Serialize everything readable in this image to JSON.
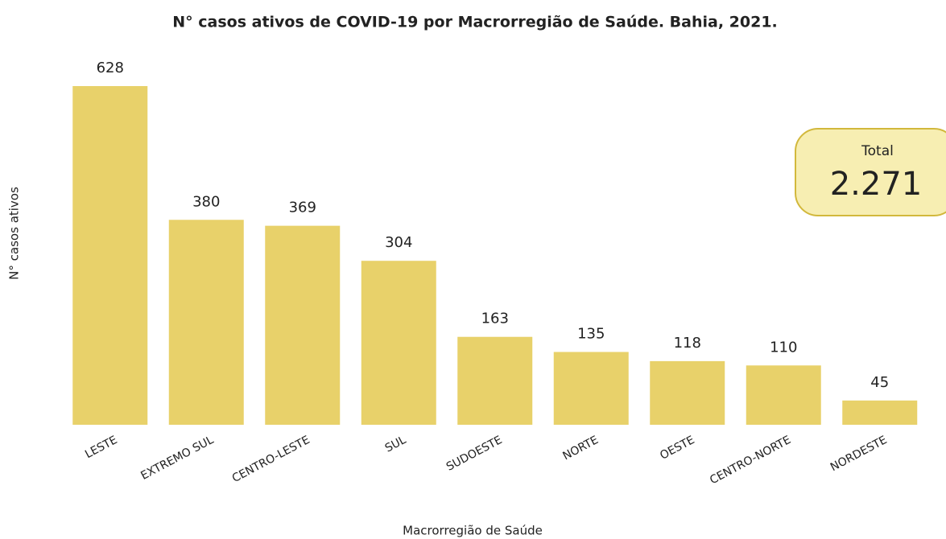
{
  "chart_data": {
    "type": "bar",
    "title": "N° casos ativos  de COVID-19 por Macrorregião de Saúde. Bahia, 2021.",
    "x_label": "Macrorregião de Saúde",
    "y_label": "N° casos ativos",
    "categories": [
      "LESTE",
      "EXTREMO SUL",
      "CENTRO-LESTE",
      "SUL",
      "SUDOESTE",
      "NORTE",
      "OESTE",
      "CENTRO-NORTE",
      "NORDESTE"
    ],
    "values": [
      628,
      380,
      369,
      304,
      163,
      135,
      118,
      110,
      45
    ],
    "color": "#e8d16a",
    "total": {
      "label": "Total",
      "value": 2271,
      "value_label": "2.271"
    }
  }
}
